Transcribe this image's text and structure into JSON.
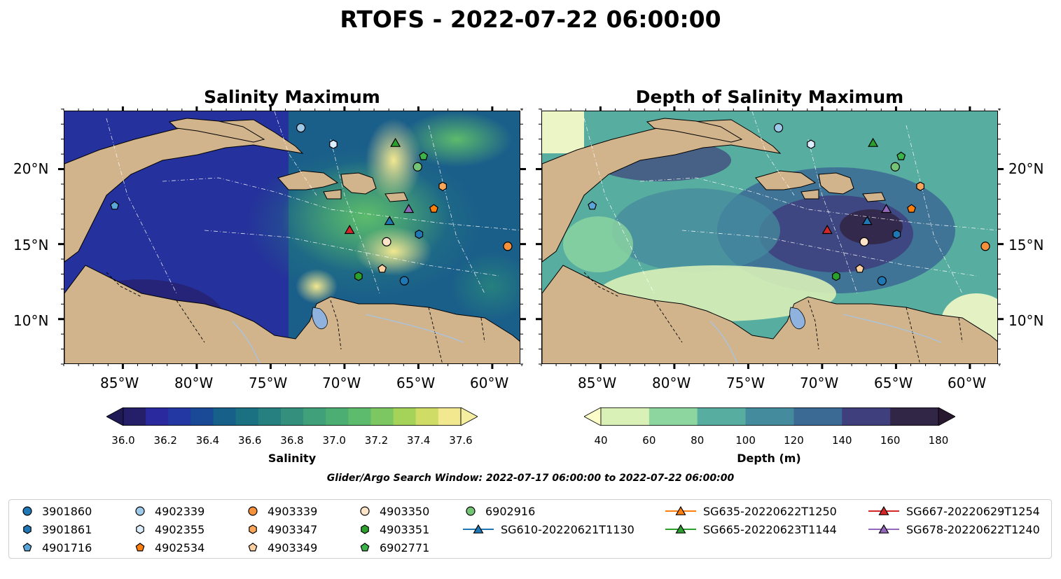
{
  "title": "RTOFS - 2022-07-22 06:00:00",
  "panels": {
    "left_title": "Salinity Maximum",
    "right_title": "Depth of Salinity Maximum"
  },
  "axes": {
    "lon_labels": [
      "85°W",
      "80°W",
      "75°W",
      "70°W",
      "65°W",
      "60°W"
    ],
    "lat_labels": [
      "20°N",
      "15°N",
      "10°N"
    ]
  },
  "colorbars": {
    "salinity": {
      "label": "Salinity",
      "ticks": [
        "36.0",
        "36.2",
        "36.4",
        "36.6",
        "36.8",
        "37.0",
        "37.2",
        "37.4",
        "37.6"
      ],
      "colors": [
        "#251f6a",
        "#2a2a9e",
        "#2338a3",
        "#1a4a96",
        "#176089",
        "#1b7082",
        "#26807f",
        "#34907c",
        "#40a07a",
        "#4dae74",
        "#5cbb6c",
        "#7cc761",
        "#a5d35a",
        "#cfdc65",
        "#f2e890"
      ],
      "extend_low": "#1f1a55",
      "extend_high": "#f5eea0"
    },
    "depth": {
      "label": "Depth (m)",
      "ticks": [
        "40",
        "60",
        "80",
        "100",
        "120",
        "140",
        "160",
        "180"
      ],
      "colors": [
        "#d9f0b7",
        "#8dd6a0",
        "#57ad9f",
        "#458b9e",
        "#3b6a95",
        "#3e3f7c",
        "#322646"
      ],
      "extend_low": "#fdfdc9",
      "extend_high": "#28192f"
    }
  },
  "search_window": "Glider/Argo Search Window: 2022-07-17 06:00:00 to 2022-07-22 06:00:00",
  "map_colors": {
    "land": "#d2b48c",
    "lake": "#8fb3de",
    "river": "#a9c3df"
  },
  "legend": [
    {
      "label": "3901860",
      "marker": "circle",
      "color": "#1f77b4"
    },
    {
      "label": "3901861",
      "marker": "hexagon",
      "color": "#1f77b4"
    },
    {
      "label": "4901716",
      "marker": "pentagon",
      "color": "#5aa6d8"
    },
    {
      "label": "4902339",
      "marker": "circle",
      "color": "#9ecae9"
    },
    {
      "label": "4902355",
      "marker": "hexagon",
      "color": "#ddeeff"
    },
    {
      "label": "4902534",
      "marker": "pentagon",
      "color": "#ff7f0e"
    },
    {
      "label": "4903339",
      "marker": "circle",
      "color": "#f5913a"
    },
    {
      "label": "4903347",
      "marker": "hexagon",
      "color": "#f9a65a"
    },
    {
      "label": "4903349",
      "marker": "pentagon",
      "color": "#fdd0a2"
    },
    {
      "label": "4903350",
      "marker": "circle",
      "color": "#fde3c8"
    },
    {
      "label": "4903351",
      "marker": "hexagon",
      "color": "#2ca02c"
    },
    {
      "label": "6902771",
      "marker": "pentagon",
      "color": "#3cb44b"
    },
    {
      "label": "6902916",
      "marker": "circle",
      "color": "#74c476"
    },
    {
      "label": "SG610-20220621T1130",
      "marker": "triangle",
      "color": "#1f77b4"
    },
    {
      "label": "SG635-20220622T1250",
      "marker": "triangle",
      "color": "#ff7f0e"
    },
    {
      "label": "SG665-20220623T1144",
      "marker": "triangle",
      "color": "#2ca02c"
    },
    {
      "label": "SG667-20220629T1254",
      "marker": "triangle",
      "color": "#d62728"
    },
    {
      "label": "SG678-20220622T1240",
      "marker": "triangle",
      "color": "#9467bd"
    }
  ],
  "observations": [
    {
      "id": "4902339",
      "lon": -73.0,
      "lat": 22.8,
      "marker": "circle",
      "color": "#9ecae9"
    },
    {
      "id": "4902355",
      "lon": -70.8,
      "lat": 21.7,
      "marker": "hexagon",
      "color": "#ddeeff"
    },
    {
      "id": "4901716",
      "lon": -85.6,
      "lat": 17.6,
      "marker": "pentagon",
      "color": "#5aa6d8"
    },
    {
      "id": "SG665-20220623T1144",
      "lon": -66.6,
      "lat": 21.8,
      "marker": "triangle",
      "color": "#2ca02c"
    },
    {
      "id": "6902771",
      "lon": -64.7,
      "lat": 20.9,
      "marker": "pentagon",
      "color": "#3cb44b"
    },
    {
      "id": "6902916",
      "lon": -65.1,
      "lat": 20.2,
      "marker": "circle",
      "color": "#74c476"
    },
    {
      "id": "4903347",
      "lon": -63.4,
      "lat": 18.9,
      "marker": "hexagon",
      "color": "#f9a65a"
    },
    {
      "id": "SG678-20220622T1240",
      "lon": -65.7,
      "lat": 17.4,
      "marker": "triangle",
      "color": "#9467bd"
    },
    {
      "id": "4902534",
      "lon": -64.0,
      "lat": 17.4,
      "marker": "pentagon",
      "color": "#ff7f0e"
    },
    {
      "id": "SG610-20220621T1130",
      "lon": -67.0,
      "lat": 16.6,
      "marker": "triangle",
      "color": "#1f77b4"
    },
    {
      "id": "SG667-20220629T1254",
      "lon": -69.7,
      "lat": 16.0,
      "marker": "triangle",
      "color": "#d62728"
    },
    {
      "id": "3901861",
      "lon": -65.0,
      "lat": 15.7,
      "marker": "hexagon",
      "color": "#1f77b4"
    },
    {
      "id": "4903350",
      "lon": -67.2,
      "lat": 15.2,
      "marker": "circle",
      "color": "#fde3c8"
    },
    {
      "id": "4903339",
      "lon": -59.0,
      "lat": 14.9,
      "marker": "circle",
      "color": "#f5913a"
    },
    {
      "id": "4903349",
      "lon": -67.5,
      "lat": 13.4,
      "marker": "pentagon",
      "color": "#fdd0a2"
    },
    {
      "id": "4903351",
      "lon": -69.1,
      "lat": 12.9,
      "marker": "hexagon",
      "color": "#2ca02c"
    },
    {
      "id": "3901860",
      "lon": -66.0,
      "lat": 12.6,
      "marker": "circle",
      "color": "#1f77b4"
    }
  ]
}
